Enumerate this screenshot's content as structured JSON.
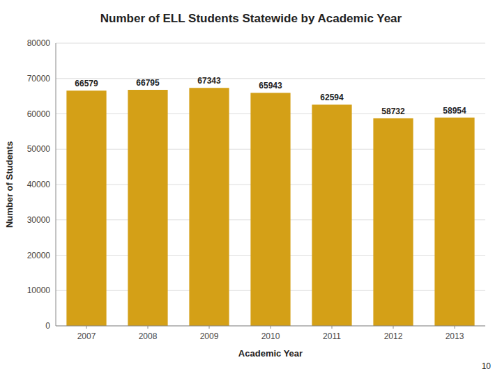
{
  "chart_data": {
    "type": "bar",
    "title": "Number of ELL Students Statewide by Academic Year",
    "categories": [
      "2007",
      "2008",
      "2009",
      "2010",
      "2011",
      "2012",
      "2013"
    ],
    "values": [
      66579,
      66795,
      67343,
      65943,
      62594,
      58732,
      58954
    ],
    "color": "#D4A017",
    "xlabel": "Academic Year",
    "ylabel": "Number of Students",
    "ylim": [
      0,
      80000
    ],
    "yticks": [
      0,
      10000,
      20000,
      30000,
      40000,
      50000,
      60000,
      70000,
      80000
    ],
    "grid": true,
    "data_labels": true,
    "annotations": [
      "10"
    ]
  }
}
